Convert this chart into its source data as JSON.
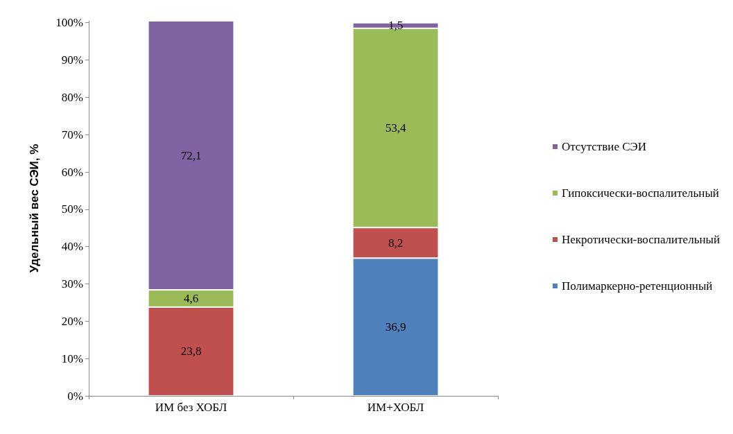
{
  "chart_data": {
    "type": "bar",
    "stacked": true,
    "ylabel": "Удельный вес СЭИ, %",
    "categories": [
      "ИМ без ХОБЛ",
      "ИМ+ХОБЛ"
    ],
    "series": [
      {
        "name": "Полимаркерно-ретенционный",
        "color": "#4f81bd",
        "values": [
          null,
          36.9
        ],
        "value_labels": [
          null,
          "36,9"
        ]
      },
      {
        "name": "Некротически-воспалительный",
        "color": "#c0504d",
        "values": [
          23.8,
          8.2
        ],
        "value_labels": [
          "23,8",
          "8,2"
        ]
      },
      {
        "name": "Гипоксически-воспалительный",
        "color": "#9bbb59",
        "values": [
          4.6,
          53.4
        ],
        "value_labels": [
          "4,6",
          "53,4"
        ]
      },
      {
        "name": "Отсутствие СЭИ",
        "color": "#8064a2",
        "values": [
          72.1,
          1.5
        ],
        "value_labels": [
          "72,1",
          "1,5"
        ]
      }
    ],
    "ylim": [
      0,
      100.5
    ],
    "yticks": [
      {
        "value": 0,
        "label": "0%"
      },
      {
        "value": 10,
        "label": "10%"
      },
      {
        "value": 20,
        "label": "20%"
      },
      {
        "value": 30,
        "label": "30%"
      },
      {
        "value": 40,
        "label": "40%"
      },
      {
        "value": 50,
        "label": "50%"
      },
      {
        "value": 60,
        "label": "60%"
      },
      {
        "value": 70,
        "label": "70%"
      },
      {
        "value": 80,
        "label": "80%"
      },
      {
        "value": 90,
        "label": "90%"
      },
      {
        "value": 100,
        "label": "100%"
      }
    ],
    "grid": false,
    "legend": "right"
  }
}
